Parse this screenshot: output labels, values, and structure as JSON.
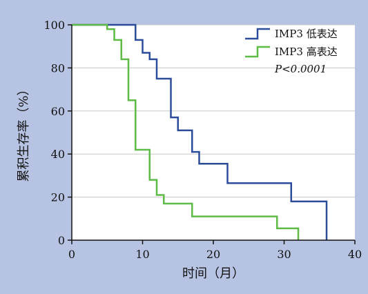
{
  "chart_data": {
    "type": "line",
    "xlabel": "时间（月）",
    "ylabel": "累积生存率（%）",
    "xlim": [
      0,
      40
    ],
    "ylim": [
      0,
      100
    ],
    "xticks": [
      0,
      10,
      20,
      30,
      40
    ],
    "yticks": [
      0,
      20,
      40,
      60,
      80,
      100
    ],
    "grid": "horizontal",
    "legend_position": "top-right",
    "annotation": "P<0.0001",
    "series": [
      {
        "name": "IMP3 低表达",
        "color": "#2b4c9b",
        "step": true,
        "x": [
          0,
          9,
          10,
          11,
          12,
          14,
          15,
          17,
          18,
          22,
          31,
          36
        ],
        "y": [
          100,
          93,
          87,
          84,
          75,
          57,
          51,
          41,
          35.5,
          26.5,
          18,
          0
        ]
      },
      {
        "name": "IMP3 高表达",
        "color": "#5dbb46",
        "step": true,
        "x": [
          0,
          5,
          6,
          7,
          8,
          9,
          11,
          12,
          13,
          17,
          29,
          32
        ],
        "y": [
          100,
          98,
          93,
          84,
          65,
          42,
          28,
          21,
          17,
          11,
          5.5,
          0
        ]
      }
    ]
  }
}
